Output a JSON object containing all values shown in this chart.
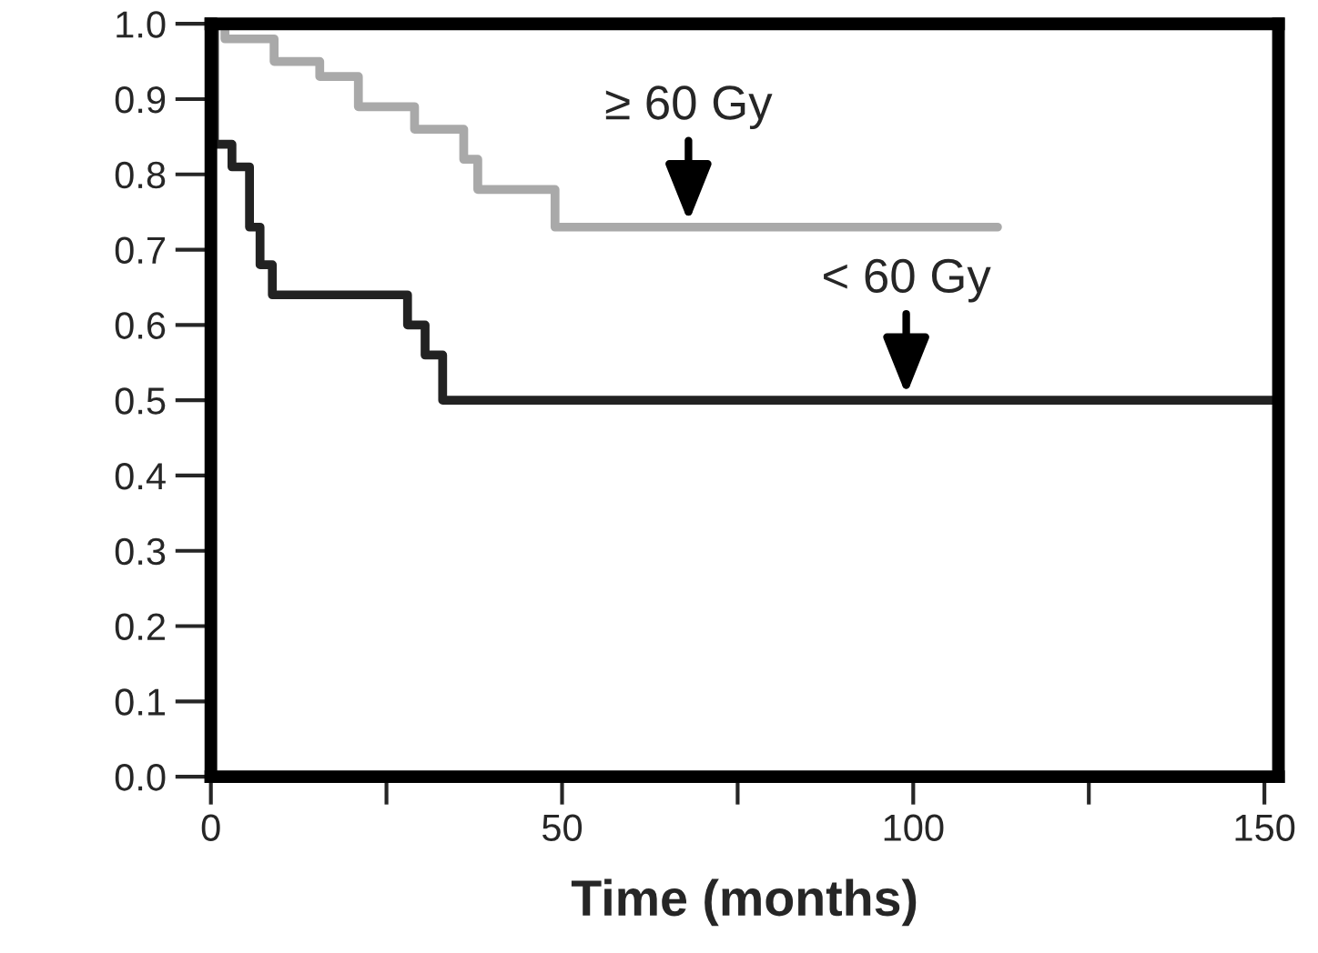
{
  "chart_data": {
    "type": "step",
    "xlabel": "Time (months)",
    "xlim": [
      0,
      152
    ],
    "xticks": [
      0,
      {
        "value": 25,
        "label": null
      },
      50,
      {
        "value": 75,
        "label": null
      },
      100,
      {
        "value": 125,
        "label": null
      },
      150
    ],
    "ylim": [
      0,
      1.0
    ],
    "yticks": [
      {
        "value": 0,
        "label": "0.0"
      },
      0.1,
      0.2,
      0.3,
      0.4,
      0.5,
      0.6,
      0.7,
      0.8,
      0.9,
      {
        "value": 1,
        "label": "1.0"
      }
    ],
    "grid": false,
    "legend": false,
    "marker": "none",
    "line_style": "solid",
    "series": [
      {
        "color": "#a9a9a9",
        "x": [
          0,
          2,
          9,
          15.5,
          21,
          29,
          36,
          38,
          49,
          112
        ],
        "values": [
          1.0,
          0.98,
          0.95,
          0.93,
          0.89,
          0.86,
          0.82,
          0.78,
          0.73,
          0.73
        ]
      },
      {
        "color": "#222222",
        "x": [
          0,
          0.5,
          3,
          5.5,
          7,
          8.75,
          28,
          30.5,
          33,
          152
        ],
        "values": [
          1.0,
          0.84,
          0.81,
          0.73,
          0.68,
          0.64,
          0.6,
          0.56,
          0.5,
          0.5
        ]
      }
    ],
    "annotations": [
      {
        "text": "≥ 60 Gy",
        "x": 68,
        "y": 0.73
      },
      {
        "text": "< 60 Gy",
        "x": 99,
        "y": 0.5
      }
    ]
  }
}
